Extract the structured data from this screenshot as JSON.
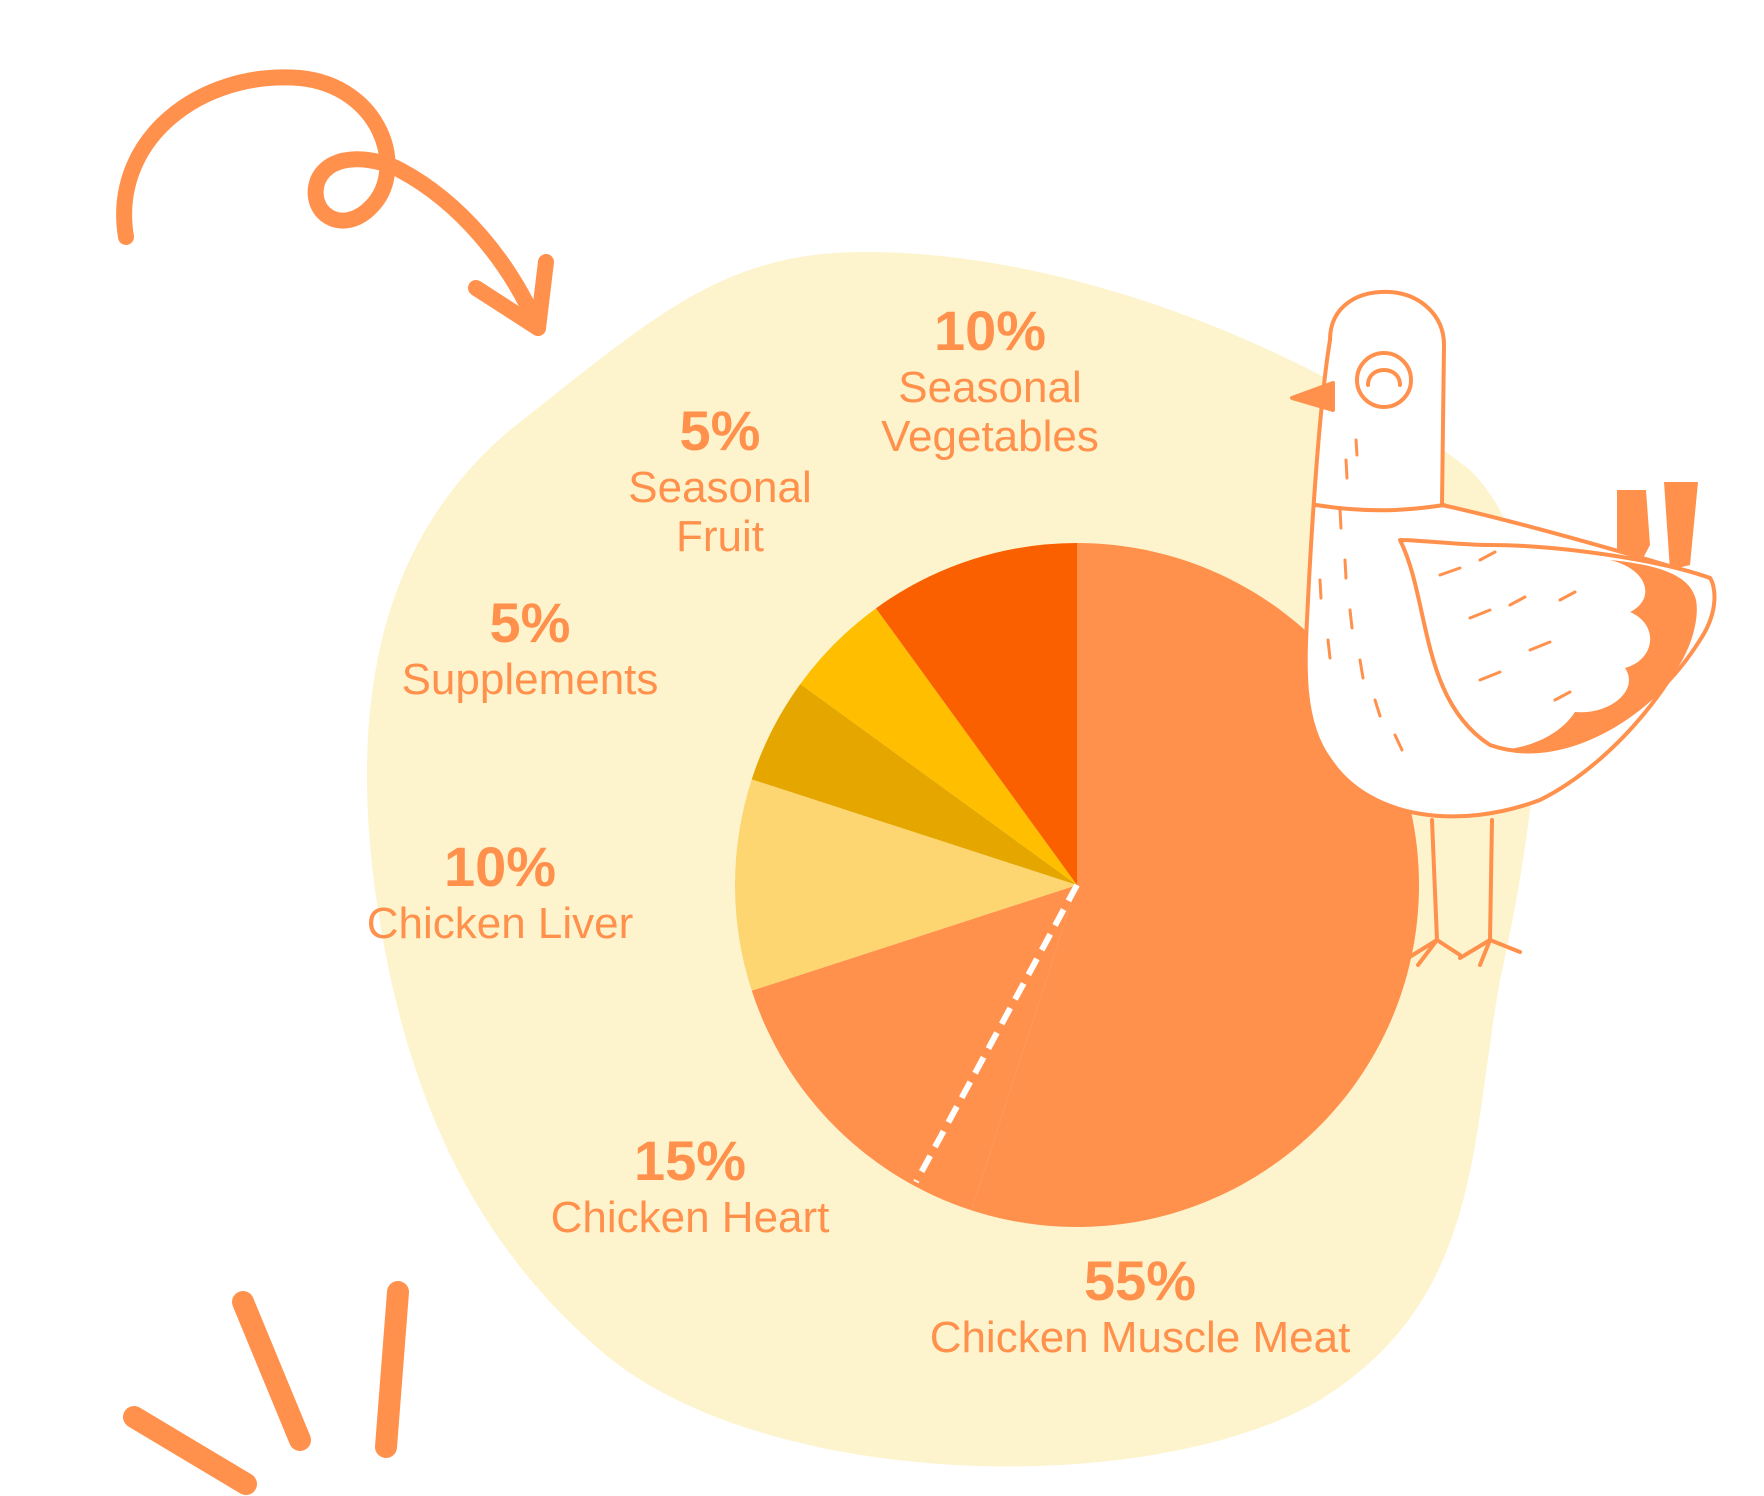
{
  "colors": {
    "background_blob": "#fdf4cd",
    "accent": "#ff914d"
  },
  "decorations": [
    "curly-arrow-icon",
    "chicken-illustration",
    "sparkle-strokes-icon"
  ],
  "chart_data": {
    "type": "pie",
    "title": "",
    "start": "12 o'clock",
    "direction": "clockwise",
    "slices": [
      {
        "key": "muscle",
        "label": "Chicken Muscle Meat",
        "value": 55,
        "percent_label": "55%",
        "color": "#ff914d"
      },
      {
        "key": "heart",
        "label": "Chicken Heart",
        "value": 15,
        "percent_label": "15%",
        "color": "#ff914d"
      },
      {
        "key": "liver",
        "label": "Chicken Liver",
        "value": 10,
        "percent_label": "10%",
        "color": "#fdd671"
      },
      {
        "key": "supplements",
        "label": "Supplements",
        "value": 5,
        "percent_label": "5%",
        "color": "#e5a600"
      },
      {
        "key": "fruit",
        "label": "Seasonal Fruit",
        "value": 5,
        "percent_label": "5%",
        "color": "#ffbf00"
      },
      {
        "key": "vegetables",
        "label": "Seasonal Vegetables",
        "value": 10,
        "percent_label": "10%",
        "color": "#fa5f00"
      }
    ]
  }
}
